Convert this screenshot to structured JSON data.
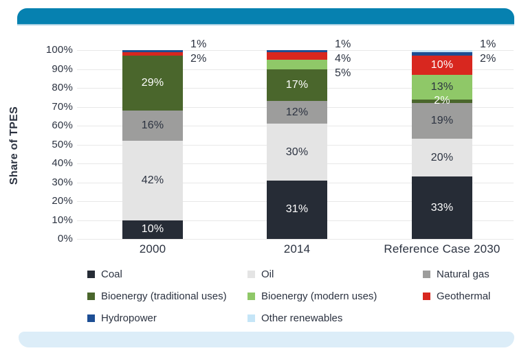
{
  "page": {
    "top_bar_color": "#0681B0",
    "top_bar_edge_color": "#A8CFE2",
    "bottom_bar_color": "#DCEDF8",
    "text_color": "#2B3240",
    "gridline_color": "#E8E8E8"
  },
  "chart_data": {
    "type": "bar",
    "stacked": true,
    "title": "",
    "ylabel": "Share of TPES",
    "xlabel": "",
    "ylim": [
      0,
      100
    ],
    "yticks": [
      "0%",
      "10%",
      "20%",
      "30%",
      "40%",
      "50%",
      "60%",
      "70%",
      "80%",
      "90%",
      "100%"
    ],
    "grid": true,
    "legend_position": "bottom",
    "categories": [
      "2000",
      "2014",
      "Reference Case 2030"
    ],
    "series": [
      {
        "name": "Coal",
        "color": "#262C36",
        "label_color": "#FFFFFF",
        "values": [
          10,
          31,
          33
        ],
        "label_modes": [
          "in",
          "in",
          "in"
        ]
      },
      {
        "name": "Oil",
        "color": "#E4E4E4",
        "label_color": "#2B3240",
        "values": [
          42,
          30,
          20
        ],
        "label_modes": [
          "in",
          "in",
          "in"
        ]
      },
      {
        "name": "Natural gas",
        "color": "#9D9D9C",
        "label_color": "#2B3240",
        "values": [
          16,
          12,
          19
        ],
        "label_modes": [
          "in",
          "in",
          "in"
        ]
      },
      {
        "name": "Bioenergy (traditional uses)",
        "color": "#4A662C",
        "label_color": "#FFFFFF",
        "values": [
          29,
          17,
          2
        ],
        "label_modes": [
          "in",
          "in",
          "in"
        ]
      },
      {
        "name": "Bioenergy (modern uses)",
        "color": "#8FC868",
        "label_color": "#2B3240",
        "values": [
          0,
          5,
          13
        ],
        "label_modes": [
          "none",
          "out",
          "in"
        ]
      },
      {
        "name": "Geothermal",
        "color": "#D8271F",
        "label_color": "#FFFFFF",
        "values": [
          2,
          4,
          10
        ],
        "label_modes": [
          "out",
          "out",
          "in"
        ]
      },
      {
        "name": "Hydropower",
        "color": "#1D4E94",
        "label_color": "#FFFFFF",
        "values": [
          1,
          1,
          2
        ],
        "label_modes": [
          "out",
          "out",
          "out"
        ]
      },
      {
        "name": "Other renewables",
        "color": "#C5E5F7",
        "label_color": "#2B3240",
        "values": [
          0,
          0,
          1
        ],
        "label_modes": [
          "none",
          "none",
          "out"
        ]
      }
    ],
    "value_suffix": "%"
  }
}
